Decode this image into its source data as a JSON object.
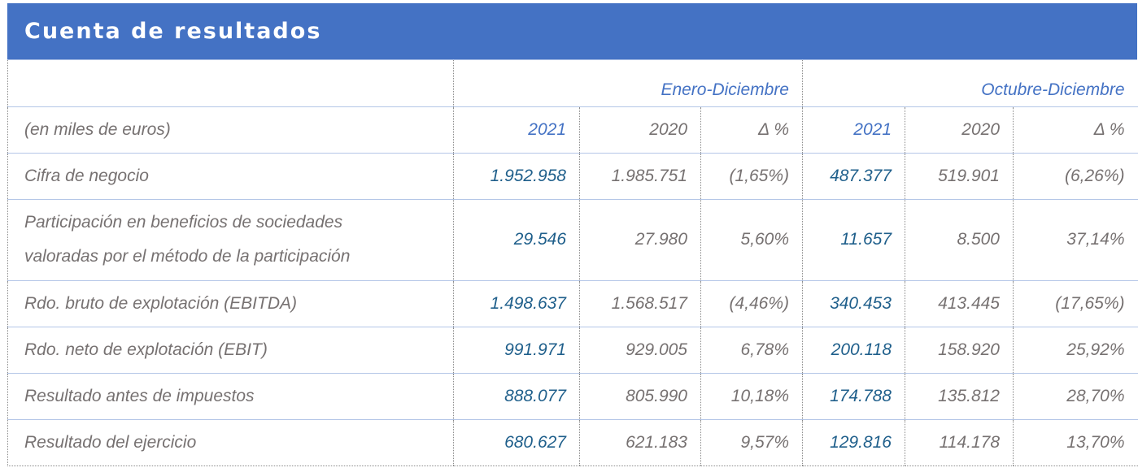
{
  "title": "Cuenta de resultados",
  "groups": [
    "Enero-Diciembre",
    "Octubre-Diciembre"
  ],
  "columns": {
    "unit_label": "(en miles de euros)",
    "headers": [
      "2021",
      "2020",
      "Δ %",
      "2021",
      "2020",
      "Δ %"
    ]
  },
  "rows": [
    {
      "label": "Cifra de negocio",
      "values": [
        "1.952.958",
        "1.985.751",
        "(1,65%)",
        "487.377",
        "519.901",
        "(6,26%)"
      ]
    },
    {
      "label": "Participación en beneficios de sociedades valoradas por el método de la participación",
      "values": [
        "29.546",
        "27.980",
        "5,60%",
        "11.657",
        "8.500",
        "37,14%"
      ]
    },
    {
      "label": "Rdo. bruto de explotación (EBITDA)",
      "values": [
        "1.498.637",
        "1.568.517",
        "(4,46%)",
        "340.453",
        "413.445",
        "(17,65%)"
      ]
    },
    {
      "label": "Rdo. neto de explotación (EBIT)",
      "values": [
        "991.971",
        "929.005",
        "6,78%",
        "200.118",
        "158.920",
        "25,92%"
      ]
    },
    {
      "label": "Resultado antes de impuestos",
      "values": [
        "888.077",
        "805.990",
        "10,18%",
        "174.788",
        "135.812",
        "28,70%"
      ]
    },
    {
      "label": "Resultado del ejercicio",
      "values": [
        "680.627",
        "621.183",
        "9,57%",
        "129.816",
        "114.178",
        "13,70%"
      ]
    }
  ],
  "colors": {
    "header_bg": "#4472c4",
    "highlight_value": "#1f5f8b",
    "text": "#767171"
  }
}
